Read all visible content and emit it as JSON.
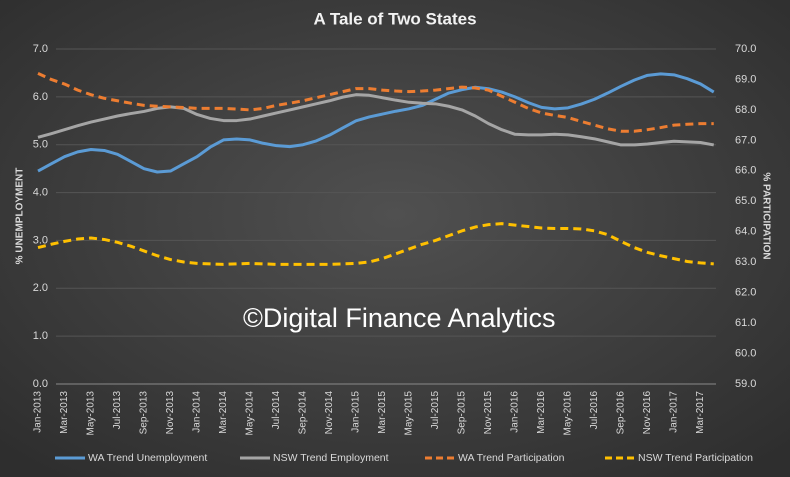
{
  "chart_data": {
    "type": "line",
    "title": "A Tale of Two States",
    "ylabel": "% UNEMPLOYMENT",
    "y2label": "% PARTICIPATION",
    "annotation": "©Digital Finance Analytics",
    "categories": [
      "Jan-2013",
      null,
      "Mar-2013",
      null,
      "May-2013",
      null,
      "Jul-2013",
      null,
      "Sep-2013",
      null,
      "Nov-2013",
      null,
      "Jan-2014",
      null,
      "Mar-2014",
      null,
      "May-2014",
      null,
      "Jul-2014",
      null,
      "Sep-2014",
      null,
      "Nov-2014",
      null,
      "Jan-2015",
      null,
      "Mar-2015",
      null,
      "May-2015",
      null,
      "Jul-2015",
      null,
      "Sep-2015",
      null,
      "Nov-2015",
      null,
      "Jan-2016",
      null,
      "Mar-2016",
      null,
      "May-2016",
      null,
      "Jul-2016",
      null,
      "Sep-2016",
      null,
      "Nov-2016",
      null,
      "Jan-2017",
      null,
      "Mar-2017",
      null
    ],
    "ylim": [
      0,
      7
    ],
    "yticks": [
      {
        "value": 0,
        "label": "0.0"
      },
      {
        "value": 1,
        "label": "1.0"
      },
      {
        "value": 2,
        "label": "2.0"
      },
      {
        "value": 3,
        "label": "3.0"
      },
      {
        "value": 4,
        "label": "4.0"
      },
      {
        "value": 5,
        "label": "5.0"
      },
      {
        "value": 6,
        "label": "6.0"
      },
      {
        "value": 7,
        "label": "7.0"
      }
    ],
    "y2lim": [
      59,
      70
    ],
    "y2ticks": [
      {
        "value": 59,
        "label": "59.0"
      },
      {
        "value": 60,
        "label": "60.0"
      },
      {
        "value": 61,
        "label": "61.0"
      },
      {
        "value": 62,
        "label": "62.0"
      },
      {
        "value": 63,
        "label": "63.0"
      },
      {
        "value": 64,
        "label": "64.0"
      },
      {
        "value": 65,
        "label": "65.0"
      },
      {
        "value": 66,
        "label": "66.0"
      },
      {
        "value": 67,
        "label": "67.0"
      },
      {
        "value": 68,
        "label": "68.0"
      },
      {
        "value": 69,
        "label": "69.0"
      },
      {
        "value": 70,
        "label": "70.0"
      }
    ],
    "grid": true,
    "legend": "bottom",
    "series": [
      {
        "name": "WA Trend Unemployment",
        "color": "#5b9bd5",
        "dashed": false,
        "axis": "y",
        "values": [
          4.45,
          4.6,
          4.75,
          4.85,
          4.9,
          4.88,
          4.8,
          4.65,
          4.5,
          4.43,
          4.45,
          4.6,
          4.75,
          4.95,
          5.1,
          5.12,
          5.1,
          5.03,
          4.98,
          4.96,
          5.0,
          5.08,
          5.2,
          5.35,
          5.5,
          5.58,
          5.64,
          5.7,
          5.75,
          5.82,
          5.95,
          6.08,
          6.15,
          6.2,
          6.17,
          6.1,
          6.0,
          5.88,
          5.78,
          5.75,
          5.77,
          5.85,
          5.95,
          6.08,
          6.22,
          6.35,
          6.45,
          6.48,
          6.46,
          6.38,
          6.27,
          6.1
        ]
      },
      {
        "name": "NSW Trend Employment",
        "color": "#a5a5a5",
        "dashed": false,
        "axis": "y2",
        "values": [
          67.1,
          67.22,
          67.35,
          67.48,
          67.6,
          67.7,
          67.8,
          67.88,
          67.95,
          68.05,
          68.1,
          68.05,
          67.85,
          67.72,
          67.65,
          67.65,
          67.7,
          67.8,
          67.9,
          68.0,
          68.1,
          68.2,
          68.3,
          68.42,
          68.5,
          68.48,
          68.4,
          68.32,
          68.25,
          68.22,
          68.2,
          68.12,
          68.0,
          67.8,
          67.55,
          67.35,
          67.2,
          67.18,
          67.18,
          67.2,
          67.18,
          67.12,
          67.05,
          66.95,
          66.85,
          66.85,
          66.88,
          66.93,
          66.97,
          66.95,
          66.93,
          66.85
        ]
      },
      {
        "name": "WA Trend Participation",
        "color": "#ed7d31",
        "dashed": true,
        "axis": "y2",
        "values": [
          69.2,
          69.0,
          68.85,
          68.65,
          68.5,
          68.38,
          68.3,
          68.22,
          68.15,
          68.12,
          68.1,
          68.08,
          68.05,
          68.05,
          68.05,
          68.03,
          68.0,
          68.05,
          68.15,
          68.22,
          68.3,
          68.4,
          68.5,
          68.6,
          68.7,
          68.7,
          68.65,
          68.62,
          68.6,
          68.62,
          68.65,
          68.7,
          68.75,
          68.72,
          68.65,
          68.45,
          68.25,
          68.05,
          67.9,
          67.82,
          67.75,
          67.62,
          67.5,
          67.38,
          67.3,
          67.3,
          67.35,
          67.42,
          67.5,
          67.53,
          67.55,
          67.55
        ]
      },
      {
        "name": "NSW Trend Participation",
        "color": "#ffc000",
        "dashed": true,
        "axis": "y",
        "values": [
          2.85,
          2.92,
          2.98,
          3.03,
          3.05,
          3.02,
          2.96,
          2.88,
          2.78,
          2.68,
          2.6,
          2.55,
          2.52,
          2.51,
          2.5,
          2.51,
          2.52,
          2.51,
          2.5,
          2.5,
          2.5,
          2.5,
          2.5,
          2.51,
          2.52,
          2.55,
          2.62,
          2.72,
          2.82,
          2.92,
          3.0,
          3.1,
          3.2,
          3.28,
          3.33,
          3.35,
          3.32,
          3.29,
          3.26,
          3.25,
          3.25,
          3.24,
          3.2,
          3.12,
          2.98,
          2.85,
          2.75,
          2.68,
          2.62,
          2.56,
          2.53,
          2.51
        ]
      }
    ]
  }
}
